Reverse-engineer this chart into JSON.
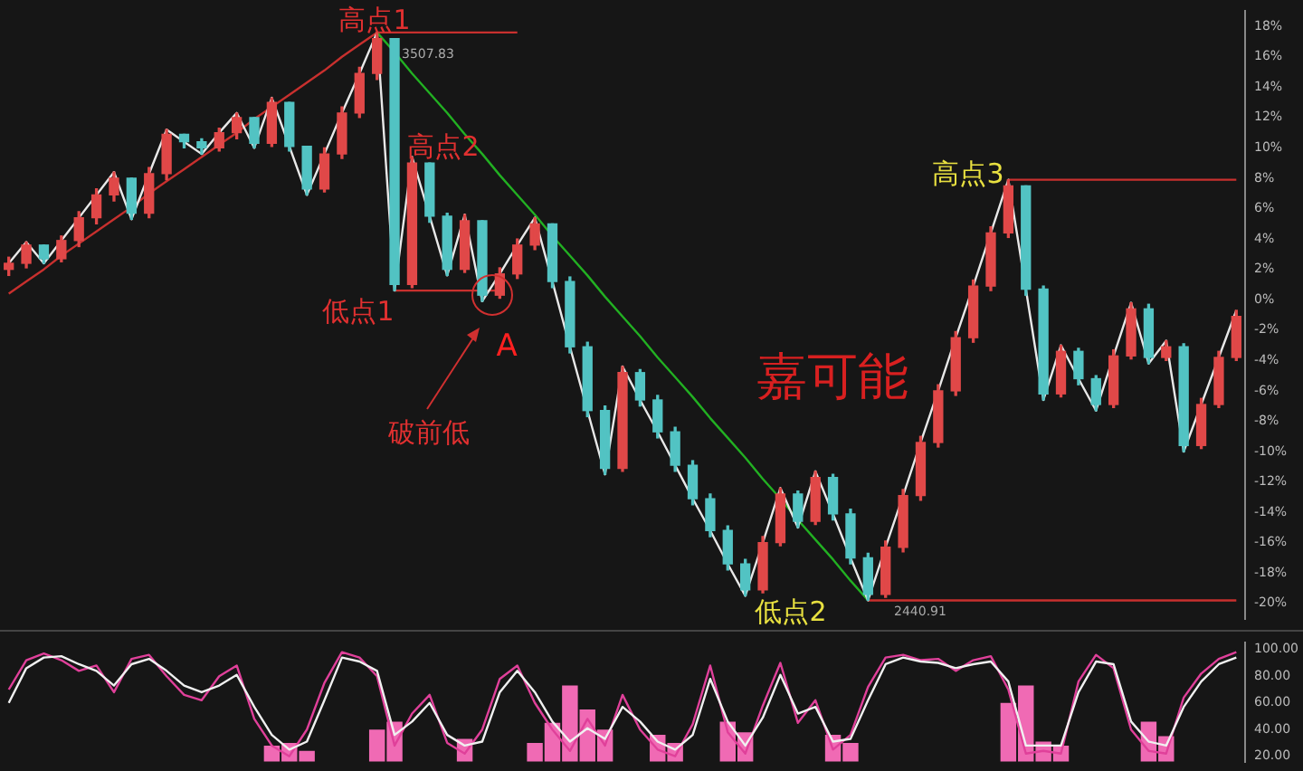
{
  "chart_data": [
    {
      "type": "candlestick",
      "categories": [
        null,
        null,
        null,
        null,
        null,
        null,
        null,
        null,
        null,
        null,
        null,
        null,
        null,
        null,
        null,
        null,
        null,
        null,
        null,
        null,
        null,
        null,
        null,
        null,
        null,
        null,
        null,
        null,
        null,
        null,
        null,
        null,
        null,
        null,
        null,
        null,
        null,
        null,
        null,
        null,
        null,
        null,
        null,
        null,
        null,
        null,
        null,
        null,
        null,
        null,
        null,
        null,
        null,
        null,
        null,
        null,
        null,
        null,
        null,
        null,
        null,
        null,
        null,
        null,
        null,
        null,
        null,
        null,
        null,
        null,
        null
      ],
      "ohlc": [
        [
          2.0,
          2.8,
          1.6,
          2.4
        ],
        [
          2.4,
          3.8,
          2.1,
          3.6
        ],
        [
          3.6,
          3.6,
          2.4,
          2.7
        ],
        [
          2.7,
          4.2,
          2.5,
          3.9
        ],
        [
          3.9,
          5.8,
          3.5,
          5.4
        ],
        [
          5.4,
          7.3,
          5.0,
          6.9
        ],
        [
          6.9,
          8.4,
          6.5,
          8.0
        ],
        [
          8.0,
          8.0,
          5.3,
          5.7
        ],
        [
          5.7,
          8.7,
          5.4,
          8.3
        ],
        [
          8.3,
          11.2,
          7.9,
          10.9
        ],
        [
          10.9,
          10.9,
          10.0,
          10.4
        ],
        [
          10.4,
          10.6,
          9.6,
          10.0
        ],
        [
          10.0,
          11.3,
          9.8,
          11.0
        ],
        [
          11.0,
          12.3,
          10.6,
          12.0
        ],
        [
          12.0,
          12.0,
          10.0,
          10.3
        ],
        [
          10.3,
          13.3,
          10.1,
          13.0
        ],
        [
          13.0,
          13.0,
          9.8,
          10.1
        ],
        [
          10.1,
          10.1,
          6.9,
          7.3
        ],
        [
          7.3,
          10.0,
          7.1,
          9.6
        ],
        [
          9.6,
          12.7,
          9.3,
          12.3
        ],
        [
          12.3,
          15.3,
          12.0,
          14.9
        ],
        [
          14.9,
          17.6,
          14.5,
          17.2
        ],
        [
          17.2,
          17.2,
          0.6,
          1.0
        ],
        [
          1.0,
          9.4,
          0.8,
          9.0
        ],
        [
          9.0,
          9.0,
          5.1,
          5.5
        ],
        [
          5.5,
          5.7,
          1.6,
          2.0
        ],
        [
          2.0,
          5.6,
          1.8,
          5.2
        ],
        [
          5.2,
          5.2,
          -0.1,
          0.3
        ],
        [
          0.3,
          2.1,
          0.1,
          1.7
        ],
        [
          1.7,
          4.0,
          1.4,
          3.6
        ],
        [
          3.6,
          5.4,
          3.3,
          5.0
        ],
        [
          5.0,
          5.0,
          0.8,
          1.2
        ],
        [
          1.2,
          1.5,
          -3.5,
          -3.1
        ],
        [
          -3.1,
          -2.8,
          -7.7,
          -7.3
        ],
        [
          -7.3,
          -7.0,
          -11.5,
          -11.1
        ],
        [
          -11.1,
          -4.4,
          -11.3,
          -4.8
        ],
        [
          -4.8,
          -4.6,
          -7.0,
          -6.6
        ],
        [
          -6.6,
          -6.3,
          -9.1,
          -8.7
        ],
        [
          -8.7,
          -8.4,
          -11.3,
          -10.9
        ],
        [
          -10.9,
          -10.6,
          -13.5,
          -13.1
        ],
        [
          -13.1,
          -12.8,
          -15.6,
          -15.2
        ],
        [
          -15.2,
          -14.9,
          -17.8,
          -17.4
        ],
        [
          -17.4,
          -17.1,
          -19.5,
          -19.1
        ],
        [
          -19.1,
          -15.6,
          -19.3,
          -16.0
        ],
        [
          -16.0,
          -12.4,
          -16.2,
          -12.8
        ],
        [
          -12.8,
          -12.6,
          -15.0,
          -14.6
        ],
        [
          -14.6,
          -11.3,
          -14.8,
          -11.7
        ],
        [
          -11.7,
          -11.5,
          -14.5,
          -14.1
        ],
        [
          -14.1,
          -13.8,
          -17.4,
          -17.0
        ],
        [
          -17.0,
          -16.7,
          -19.8,
          -19.4
        ],
        [
          -19.4,
          -15.9,
          -19.6,
          -16.3
        ],
        [
          -16.3,
          -12.5,
          -16.6,
          -12.9
        ],
        [
          -12.9,
          -9.0,
          -13.2,
          -9.4
        ],
        [
          -9.4,
          -5.6,
          -9.7,
          -6.0
        ],
        [
          -6.0,
          -2.1,
          -6.3,
          -2.5
        ],
        [
          -2.5,
          1.3,
          -2.8,
          0.9
        ],
        [
          0.9,
          4.8,
          0.6,
          4.4
        ],
        [
          4.4,
          7.9,
          4.1,
          7.5
        ],
        [
          7.5,
          7.5,
          0.3,
          0.7
        ],
        [
          0.7,
          0.9,
          -6.6,
          -6.2
        ],
        [
          -6.2,
          -3.0,
          -6.4,
          -3.4
        ],
        [
          -3.4,
          -3.2,
          -5.6,
          -5.2
        ],
        [
          -5.2,
          -5.0,
          -7.3,
          -6.9
        ],
        [
          -6.9,
          -3.3,
          -7.1,
          -3.7
        ],
        [
          -3.7,
          -0.2,
          -3.9,
          -0.6
        ],
        [
          -0.6,
          -0.3,
          -4.2,
          -3.8
        ],
        [
          -3.8,
          -2.7,
          -4.0,
          -3.1
        ],
        [
          -3.1,
          -2.9,
          -10.0,
          -9.6
        ],
        [
          -9.6,
          -6.5,
          -9.8,
          -6.9
        ],
        [
          -6.9,
          -3.4,
          -7.1,
          -3.8
        ],
        [
          -3.8,
          -0.7,
          -4.0,
          -1.1
        ]
      ],
      "series": [
        {
          "type": "line",
          "color": "#e8e8e8",
          "values": [
            2.4,
            3.8,
            2.4,
            3.9,
            5.4,
            6.9,
            8.4,
            5.3,
            8.3,
            11.2,
            10.4,
            9.6,
            11.0,
            12.3,
            10.0,
            13.3,
            10.1,
            6.9,
            9.6,
            12.3,
            14.9,
            17.6,
            0.6,
            9.4,
            5.5,
            1.6,
            5.6,
            -0.1,
            1.7,
            3.6,
            5.4,
            1.2,
            -3.1,
            -7.3,
            -11.5,
            -4.4,
            -6.6,
            -8.7,
            -10.9,
            -13.1,
            -15.2,
            -17.4,
            -19.5,
            -16.0,
            -12.4,
            -15.0,
            -11.3,
            -14.1,
            -17.0,
            -19.8,
            -16.3,
            -12.9,
            -9.4,
            -6.0,
            -2.5,
            0.9,
            4.4,
            7.9,
            0.7,
            -6.6,
            -3.0,
            -5.2,
            -7.3,
            -3.7,
            -0.2,
            -4.2,
            -2.7,
            -10.0,
            -6.9,
            -3.8,
            -0.7
          ]
        },
        {
          "type": "line",
          "color": "#c8302e",
          "values": [
            0.4,
            1.2,
            2.0,
            2.9,
            3.7,
            4.5,
            5.3,
            6.1,
            7.0,
            7.8,
            8.6,
            9.4,
            10.2,
            11.0,
            11.9,
            12.7,
            13.5,
            14.3,
            15.1,
            16.0,
            16.8,
            17.6,
            null,
            null,
            null,
            null,
            null,
            null,
            null,
            null,
            null,
            null,
            null,
            null,
            null,
            null,
            null,
            null,
            null,
            null,
            null,
            null,
            null,
            null,
            null,
            null,
            null,
            null,
            null,
            null,
            null,
            null,
            null,
            null,
            null,
            null,
            null,
            null,
            null,
            null,
            null,
            null,
            null,
            null,
            null,
            null,
            null,
            null,
            null,
            null,
            null
          ]
        },
        {
          "type": "line",
          "color": "#22b022",
          "values": [
            null,
            null,
            null,
            null,
            null,
            null,
            null,
            null,
            null,
            null,
            null,
            null,
            null,
            null,
            null,
            null,
            null,
            null,
            null,
            null,
            null,
            17.6,
            16.3,
            14.9,
            13.6,
            12.3,
            10.9,
            9.6,
            8.2,
            6.9,
            5.6,
            4.2,
            2.9,
            1.6,
            0.2,
            -1.1,
            -2.4,
            -3.8,
            -5.1,
            -6.4,
            -7.8,
            -9.1,
            -10.4,
            -11.8,
            -13.1,
            -14.5,
            -15.8,
            -17.1,
            -18.5,
            -19.8,
            null,
            null,
            null,
            null,
            null,
            null,
            null,
            null,
            null,
            null,
            null,
            null,
            null,
            null,
            null,
            null,
            null,
            null,
            null,
            null,
            null
          ]
        },
        {
          "type": "line",
          "color": "#c8302e",
          "values": [
            null,
            null,
            null,
            null,
            null,
            null,
            null,
            null,
            null,
            null,
            null,
            null,
            null,
            null,
            null,
            null,
            null,
            null,
            null,
            null,
            null,
            17.6,
            17.6,
            17.6,
            17.6,
            17.6,
            17.6,
            17.6,
            17.6,
            17.6,
            null,
            null,
            null,
            null,
            null,
            null,
            null,
            null,
            null,
            null,
            null,
            null,
            null,
            null,
            null,
            null,
            null,
            null,
            null,
            null,
            null,
            null,
            null,
            null,
            null,
            null,
            null,
            null,
            null,
            null,
            null,
            null,
            null,
            null,
            null,
            null,
            null,
            null,
            null,
            null,
            null
          ]
        },
        {
          "type": "line",
          "color": "#c8302e",
          "values": [
            null,
            null,
            null,
            null,
            null,
            null,
            null,
            null,
            null,
            null,
            null,
            null,
            null,
            null,
            null,
            null,
            null,
            null,
            null,
            null,
            null,
            null,
            0.6,
            0.6,
            0.6,
            0.6,
            0.6,
            0.6,
            0.6,
            null,
            null,
            null,
            null,
            null,
            null,
            null,
            null,
            null,
            null,
            null,
            null,
            null,
            null,
            null,
            null,
            null,
            null,
            null,
            null,
            null,
            null,
            null,
            null,
            null,
            null,
            null,
            null,
            null,
            null,
            null,
            null,
            null,
            null,
            null,
            null,
            null,
            null,
            null,
            null,
            null,
            null
          ]
        },
        {
          "type": "line",
          "color": "#c8302e",
          "values": [
            null,
            null,
            null,
            null,
            null,
            null,
            null,
            null,
            null,
            null,
            null,
            null,
            null,
            null,
            null,
            null,
            null,
            null,
            null,
            null,
            null,
            null,
            null,
            null,
            null,
            null,
            null,
            null,
            null,
            null,
            null,
            null,
            null,
            null,
            null,
            null,
            null,
            null,
            null,
            null,
            null,
            null,
            null,
            null,
            null,
            null,
            null,
            null,
            null,
            -19.8,
            -19.8,
            -19.8,
            -19.8,
            -19.8,
            -19.8,
            -19.8,
            -19.8,
            -19.8,
            -19.8,
            -19.8,
            -19.8,
            -19.8,
            -19.8,
            -19.8,
            -19.8,
            -19.8,
            -19.8,
            -19.8,
            -19.8,
            -19.8,
            -19.8
          ]
        },
        {
          "type": "line",
          "color": "#c8302e",
          "values": [
            null,
            null,
            null,
            null,
            null,
            null,
            null,
            null,
            null,
            null,
            null,
            null,
            null,
            null,
            null,
            null,
            null,
            null,
            null,
            null,
            null,
            null,
            null,
            null,
            null,
            null,
            null,
            null,
            null,
            null,
            null,
            null,
            null,
            null,
            null,
            null,
            null,
            null,
            null,
            null,
            null,
            null,
            null,
            null,
            null,
            null,
            null,
            null,
            null,
            null,
            null,
            null,
            null,
            null,
            null,
            null,
            null,
            7.9,
            7.9,
            7.9,
            7.9,
            7.9,
            7.9,
            7.9,
            7.9,
            7.9,
            7.9,
            7.9,
            7.9,
            7.9,
            7.9
          ]
        }
      ],
      "ylim": [
        -21,
        19
      ],
      "yticks": [
        {
          "value": 18,
          "label": "18%"
        },
        {
          "value": 16,
          "label": "16%"
        },
        {
          "value": 14,
          "label": "14%"
        },
        {
          "value": 12,
          "label": "12%"
        },
        {
          "value": 10,
          "label": "10%"
        },
        {
          "value": 8,
          "label": "8%"
        },
        {
          "value": 6,
          "label": "6%"
        },
        {
          "value": 4,
          "label": "4%"
        },
        {
          "value": 2,
          "label": "2%"
        },
        {
          "value": 0,
          "label": "0%"
        },
        {
          "value": -2,
          "label": "-2%"
        },
        {
          "value": -4,
          "label": "-4%"
        },
        {
          "value": -6,
          "label": "-6%"
        },
        {
          "value": -8,
          "label": "-8%"
        },
        {
          "value": -10,
          "label": "-10%"
        },
        {
          "value": -12,
          "label": "-12%"
        },
        {
          "value": -14,
          "label": "-14%"
        },
        {
          "value": -16,
          "label": "-16%"
        },
        {
          "value": -18,
          "label": "-18%"
        },
        {
          "value": -20,
          "label": "-20%"
        }
      ],
      "tick_labels": "y",
      "annotations": [
        "高点1",
        "3507.83",
        "高点2",
        "低点1",
        "A",
        "破前低",
        "嘉可能",
        "高点3",
        "低点2",
        "2440.91"
      ]
    },
    {
      "type": "line",
      "categories": [
        null,
        null,
        null,
        null,
        null,
        null,
        null,
        null,
        null,
        null,
        null,
        null,
        null,
        null,
        null,
        null,
        null,
        null,
        null,
        null,
        null,
        null,
        null,
        null,
        null,
        null,
        null,
        null,
        null,
        null,
        null,
        null,
        null,
        null,
        null,
        null,
        null,
        null,
        null,
        null,
        null,
        null,
        null,
        null,
        null,
        null,
        null,
        null,
        null,
        null,
        null,
        null,
        null,
        null,
        null,
        null,
        null,
        null,
        null,
        null,
        null,
        null,
        null,
        null,
        null,
        null,
        null,
        null,
        null,
        null,
        null
      ],
      "series": [
        {
          "type": "bar",
          "color": "#f06ab4",
          "values": [
            null,
            null,
            null,
            null,
            null,
            null,
            null,
            null,
            null,
            null,
            null,
            null,
            null,
            null,
            null,
            28,
            30,
            24,
            null,
            null,
            null,
            40,
            46,
            null,
            null,
            null,
            33,
            null,
            null,
            null,
            30,
            45,
            73,
            55,
            40,
            null,
            null,
            36,
            30,
            null,
            null,
            46,
            38,
            null,
            null,
            null,
            null,
            36,
            30,
            null,
            null,
            null,
            null,
            null,
            null,
            null,
            null,
            60,
            73,
            31,
            28,
            null,
            null,
            null,
            null,
            46,
            35,
            null,
            null,
            null,
            null
          ]
        },
        {
          "type": "line",
          "color": "#f0f0f0",
          "values": [
            60,
            86,
            94,
            95,
            89,
            84,
            73,
            89,
            93,
            84,
            73,
            68,
            73,
            81,
            57,
            36,
            25,
            31,
            62,
            94,
            91,
            84,
            36,
            46,
            60,
            36,
            28,
            31,
            68,
            84,
            68,
            46,
            31,
            41,
            33,
            57,
            46,
            31,
            25,
            36,
            78,
            46,
            28,
            49,
            81,
            52,
            57,
            31,
            33,
            62,
            89,
            94,
            91,
            90,
            86,
            89,
            91,
            76,
            28,
            28,
            28,
            68,
            91,
            89,
            46,
            31,
            28,
            57,
            76,
            89,
            94
          ]
        },
        {
          "type": "line",
          "color": "#e0409a",
          "values": [
            70,
            92,
            97,
            92,
            84,
            88,
            68,
            93,
            96,
            80,
            66,
            62,
            80,
            88,
            48,
            28,
            20,
            40,
            75,
            98,
            94,
            80,
            28,
            52,
            66,
            30,
            22,
            40,
            78,
            88,
            60,
            40,
            24,
            48,
            28,
            66,
            40,
            25,
            20,
            44,
            88,
            38,
            22,
            58,
            90,
            45,
            62,
            25,
            36,
            72,
            94,
            96,
            92,
            93,
            84,
            92,
            95,
            70,
            22,
            24,
            22,
            76,
            96,
            86,
            40,
            24,
            22,
            64,
            82,
            93,
            98
          ]
        }
      ],
      "ylim": [
        16,
        105
      ],
      "yticks": [
        {
          "value": 100,
          "label": "100.00"
        },
        {
          "value": 80,
          "label": "80.00"
        },
        {
          "value": 60,
          "label": "60.00"
        },
        {
          "value": 40,
          "label": "40.00"
        },
        {
          "value": 20,
          "label": "20.00"
        }
      ],
      "tick_labels": "y"
    }
  ]
}
